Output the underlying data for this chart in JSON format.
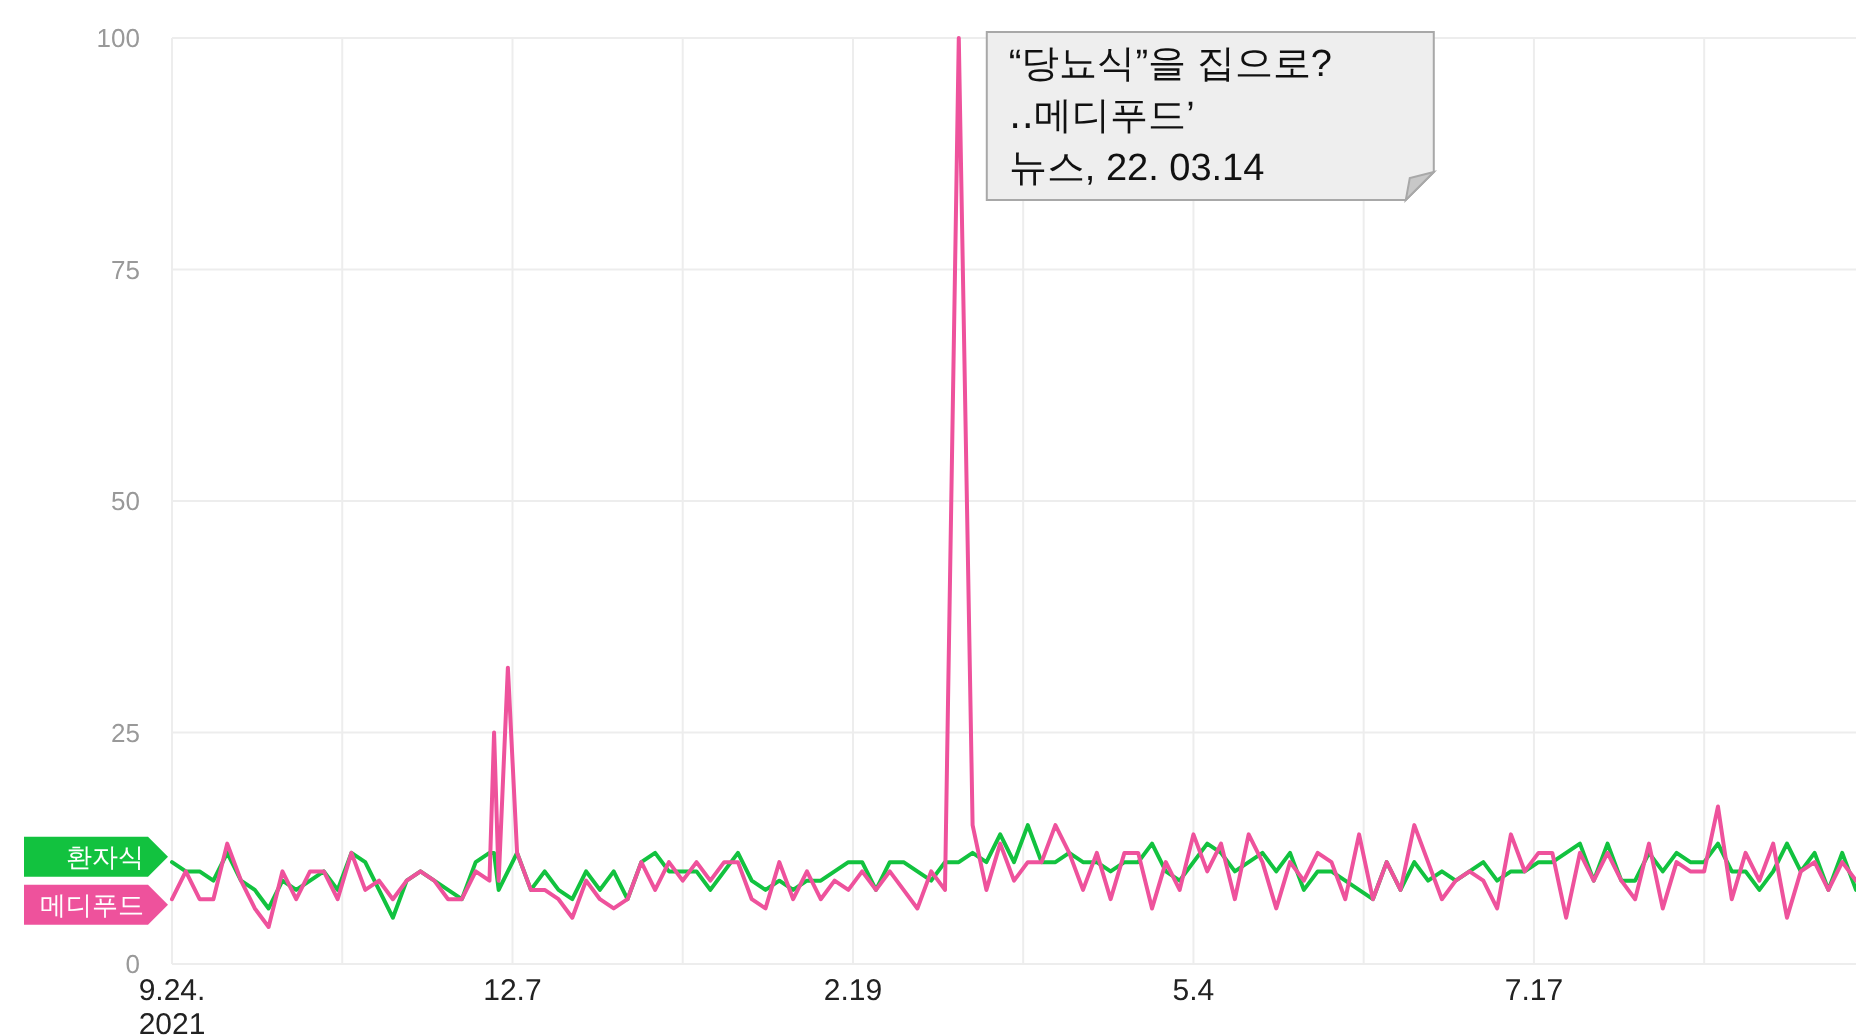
{
  "chart_data": {
    "type": "line",
    "x": [
      "2021-09-24",
      "2021-09-27",
      "2021-09-30",
      "2021-10-03",
      "2021-10-06",
      "2021-10-09",
      "2021-10-12",
      "2021-10-15",
      "2021-10-18",
      "2021-10-21",
      "2021-10-24",
      "2021-10-27",
      "2021-10-30",
      "2021-11-02",
      "2021-11-05",
      "2021-11-08",
      "2021-11-11",
      "2021-11-14",
      "2021-11-17",
      "2021-11-20",
      "2021-11-23",
      "2021-11-26",
      "2021-11-29",
      "2021-12-02",
      "2021-12-03",
      "2021-12-04",
      "2021-12-06",
      "2021-12-08",
      "2021-12-11",
      "2021-12-14",
      "2021-12-17",
      "2021-12-20",
      "2021-12-23",
      "2021-12-26",
      "2021-12-29",
      "2022-01-01",
      "2022-01-04",
      "2022-01-07",
      "2022-01-10",
      "2022-01-13",
      "2022-01-16",
      "2022-01-19",
      "2022-01-22",
      "2022-01-25",
      "2022-01-28",
      "2022-01-31",
      "2022-02-03",
      "2022-02-06",
      "2022-02-09",
      "2022-02-12",
      "2022-02-15",
      "2022-02-18",
      "2022-02-21",
      "2022-02-24",
      "2022-02-27",
      "2022-03-02",
      "2022-03-05",
      "2022-03-08",
      "2022-03-11",
      "2022-03-14",
      "2022-03-17",
      "2022-03-20",
      "2022-03-23",
      "2022-03-26",
      "2022-03-29",
      "2022-04-01",
      "2022-04-04",
      "2022-04-07",
      "2022-04-10",
      "2022-04-13",
      "2022-04-16",
      "2022-04-19",
      "2022-04-22",
      "2022-04-25",
      "2022-04-28",
      "2022-05-01",
      "2022-05-04",
      "2022-05-07",
      "2022-05-10",
      "2022-05-13",
      "2022-05-16",
      "2022-05-19",
      "2022-05-22",
      "2022-05-25",
      "2022-05-28",
      "2022-05-31",
      "2022-06-03",
      "2022-06-06",
      "2022-06-09",
      "2022-06-12",
      "2022-06-15",
      "2022-06-18",
      "2022-06-21",
      "2022-06-24",
      "2022-06-27",
      "2022-06-30",
      "2022-07-03",
      "2022-07-06",
      "2022-07-09",
      "2022-07-12",
      "2022-07-15",
      "2022-07-18",
      "2022-07-21",
      "2022-07-24",
      "2022-07-27",
      "2022-07-30",
      "2022-08-02",
      "2022-08-05",
      "2022-08-08",
      "2022-08-11",
      "2022-08-14",
      "2022-08-17",
      "2022-08-20",
      "2022-08-23",
      "2022-08-26",
      "2022-08-29",
      "2022-09-01",
      "2022-09-04",
      "2022-09-07",
      "2022-09-10",
      "2022-09-13",
      "2022-09-16",
      "2022-09-19",
      "2022-09-22",
      "2022-09-25"
    ],
    "series": [
      {
        "name": "환자식",
        "color": "#12c23f",
        "values": [
          11,
          10,
          10,
          9,
          12,
          9,
          8,
          6,
          9,
          8,
          9,
          10,
          8,
          12,
          11,
          8,
          5,
          9,
          10,
          9,
          8,
          7,
          11,
          12,
          12,
          8,
          10,
          12,
          8,
          10,
          8,
          7,
          10,
          8,
          10,
          7,
          11,
          12,
          10,
          10,
          10,
          8,
          10,
          12,
          9,
          8,
          9,
          8,
          9,
          9,
          10,
          11,
          11,
          8,
          11,
          11,
          10,
          9,
          11,
          11,
          12,
          11,
          14,
          11,
          15,
          11,
          11,
          12,
          11,
          11,
          10,
          11,
          11,
          13,
          10,
          9,
          11,
          13,
          12,
          10,
          11,
          12,
          10,
          12,
          8,
          10,
          10,
          9,
          8,
          7,
          11,
          8,
          11,
          9,
          10,
          9,
          10,
          11,
          9,
          10,
          10,
          11,
          11,
          12,
          13,
          9,
          13,
          9,
          9,
          12,
          10,
          12,
          11,
          11,
          13,
          10,
          10,
          8,
          10,
          13,
          10,
          12,
          8,
          12,
          8
        ]
      },
      {
        "name": "메디푸드",
        "color": "#ee529c",
        "values": [
          7,
          10,
          7,
          7,
          13,
          9,
          6,
          4,
          10,
          7,
          10,
          10,
          7,
          12,
          8,
          9,
          7,
          9,
          10,
          9,
          7,
          7,
          10,
          9,
          25,
          9,
          32,
          12,
          8,
          8,
          7,
          5,
          9,
          7,
          6,
          7,
          11,
          8,
          11,
          9,
          11,
          9,
          11,
          11,
          7,
          6,
          11,
          7,
          10,
          7,
          9,
          8,
          10,
          8,
          10,
          8,
          6,
          10,
          8,
          100,
          15,
          8,
          13,
          9,
          11,
          11,
          15,
          12,
          8,
          12,
          7,
          12,
          12,
          6,
          11,
          8,
          14,
          10,
          13,
          7,
          14,
          11,
          6,
          11,
          9,
          12,
          11,
          7,
          14,
          7,
          11,
          8,
          15,
          11,
          7,
          9,
          10,
          9,
          6,
          14,
          10,
          12,
          12,
          5,
          12,
          9,
          12,
          9,
          7,
          13,
          6,
          11,
          10,
          10,
          17,
          7,
          12,
          9,
          13,
          5,
          10,
          11,
          8,
          11,
          9
        ]
      }
    ],
    "xlim": [
      "2021-09-24",
      "2022-09-25"
    ],
    "xticks": [
      {
        "value": "2021-09-24",
        "label": "9.24.\n2021"
      },
      {
        "value": "2021-10-31",
        "label": null
      },
      {
        "value": "2021-12-07",
        "label": "12.7"
      },
      {
        "value": "2022-01-13",
        "label": null
      },
      {
        "value": "2022-02-19",
        "label": "2.19"
      },
      {
        "value": "2022-03-28",
        "label": null
      },
      {
        "value": "2022-05-04",
        "label": "5.4"
      },
      {
        "value": "2022-06-10",
        "label": null
      },
      {
        "value": "2022-07-17",
        "label": "7.17"
      },
      {
        "value": "2022-08-23",
        "label": null
      }
    ],
    "ylim": [
      0,
      100
    ],
    "yticks": [
      0,
      25,
      50,
      75,
      100
    ],
    "grid": true,
    "legend": "left",
    "annotations": [
      {
        "text": "“당뇨식”을 집으로?\n‥메디푸드’\n뉴스, 22. 03.14",
        "x": "2022-03-14",
        "y": 100
      }
    ]
  }
}
